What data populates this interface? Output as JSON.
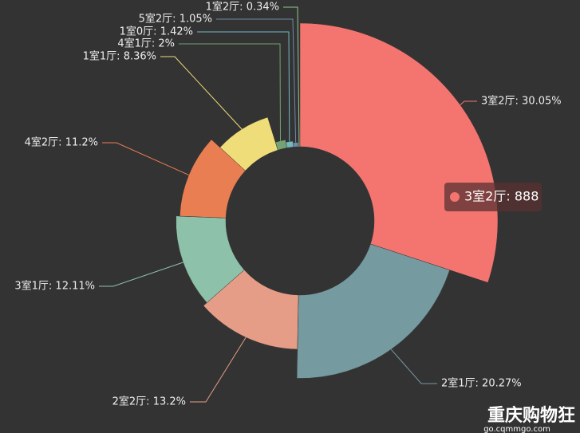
{
  "chart_data": {
    "type": "pie",
    "rose": true,
    "value_labels": [
      "3室2厅: 30.05%",
      "2室1厅: 20.27%",
      "2室2厅: 13.2%",
      "3室1厅: 12.11%",
      "4室2厅: 11.2%",
      "1室1厅: 8.36%",
      "4室1厅: 2%",
      "1室0厅: 1.42%",
      "5室2厅: 1.05%",
      "1室2厅: 0.34%"
    ],
    "values": [
      30.05,
      20.27,
      13.2,
      12.11,
      11.2,
      8.36,
      2,
      1.42,
      1.05,
      0.34
    ],
    "colors": [
      "#f47570",
      "#759aa0",
      "#e69d87",
      "#8dc1a9",
      "#ea7e53",
      "#eedd78",
      "#73a373",
      "#73b9bc",
      "#7289ab",
      "#91ca8c"
    ],
    "tooltip": "3室2厅: 888"
  },
  "watermark": {
    "title": "重庆购物狂",
    "url": "go.cqmmgo.com"
  }
}
